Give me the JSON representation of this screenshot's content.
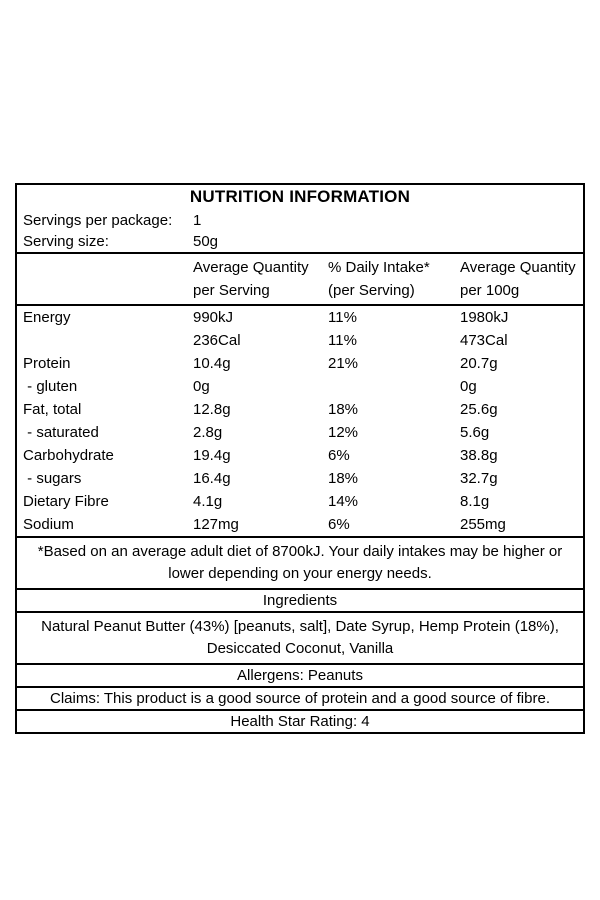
{
  "colors": {
    "border": "#000000",
    "background": "#ffffff",
    "text": "#000000"
  },
  "label": {
    "title": "NUTRITION INFORMATION",
    "servings_per_package": {
      "label": "Servings per package:",
      "value": "1"
    },
    "serving_size": {
      "label": "Serving size:",
      "value": "50g"
    },
    "columns": {
      "per_serving_line1": "Average Quantity",
      "per_serving_line2": "per Serving",
      "daily_intake_line1": "% Daily Intake*",
      "daily_intake_line2": "(per Serving)",
      "per_100g_line1": "Average Quantity",
      "per_100g_line2": "per 100g"
    },
    "nutrients": [
      {
        "name": "Energy",
        "per_serving": "990kJ",
        "daily_intake": "11%",
        "per_100g": "1980kJ"
      },
      {
        "name": "",
        "per_serving": "236Cal",
        "daily_intake": "11%",
        "per_100g": "473Cal"
      },
      {
        "name": "Protein",
        "per_serving": "10.4g",
        "daily_intake": "21%",
        "per_100g": "20.7g"
      },
      {
        "name": " - gluten",
        "per_serving": "0g",
        "daily_intake": "",
        "per_100g": "0g"
      },
      {
        "name": "Fat, total",
        "per_serving": "12.8g",
        "daily_intake": "18%",
        "per_100g": "25.6g"
      },
      {
        "name": " - saturated",
        "per_serving": "2.8g",
        "daily_intake": "12%",
        "per_100g": "5.6g"
      },
      {
        "name": "Carbohydrate",
        "per_serving": "19.4g",
        "daily_intake": "6%",
        "per_100g": "38.8g"
      },
      {
        "name": " - sugars",
        "per_serving": "16.4g",
        "daily_intake": "18%",
        "per_100g": "32.7g"
      },
      {
        "name": "Dietary Fibre",
        "per_serving": "4.1g",
        "daily_intake": "14%",
        "per_100g": "8.1g"
      },
      {
        "name": "Sodium",
        "per_serving": "127mg",
        "daily_intake": "6%",
        "per_100g": "255mg"
      }
    ],
    "footnote": "*Based on an average adult diet of 8700kJ. Your daily intakes may be higher or lower depending on your energy needs.",
    "ingredients_heading": "Ingredients",
    "ingredients": "Natural Peanut Butter (43%) [peanuts, salt], Date Syrup, Hemp Protein (18%), Desiccated Coconut, Vanilla",
    "allergens": "Allergens: Peanuts",
    "claims": "Claims: This product is a good source of protein and a good source of fibre.",
    "health_star_rating": "Health Star Rating: 4"
  }
}
